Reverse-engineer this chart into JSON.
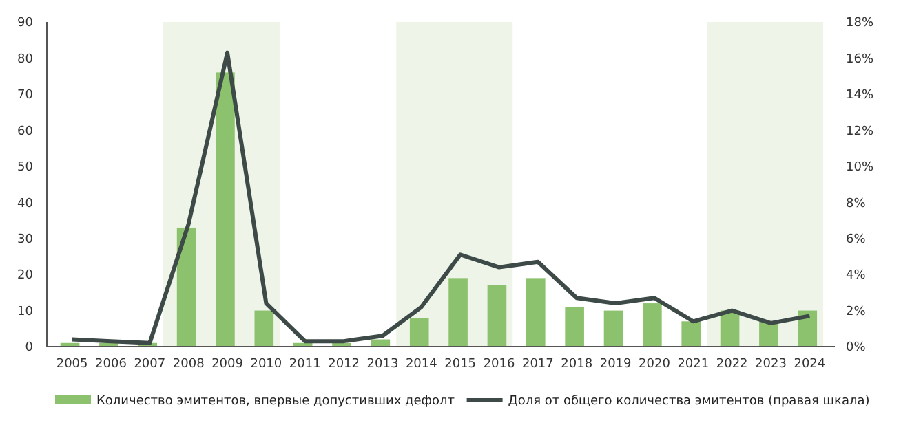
{
  "chart_data": {
    "type": "bar",
    "categories": [
      "2005",
      "2006",
      "2007",
      "2008",
      "2009",
      "2010",
      "2011",
      "2012",
      "2013",
      "2014",
      "2015",
      "2016",
      "2017",
      "2018",
      "2019",
      "2020",
      "2021",
      "2022",
      "2023",
      "2024"
    ],
    "series": [
      {
        "name": "Количество эмитентов, впервые допустивших дефолт",
        "color": "#8cc26e",
        "values": [
          1,
          1,
          1,
          33,
          76,
          10,
          1,
          1,
          2,
          8,
          19,
          17,
          19,
          11,
          10,
          12,
          7,
          10,
          7,
          10
        ]
      },
      {
        "name": "Доля от общего количества эмитентов (правая шкала)",
        "color": "#3d4a48",
        "type": "line",
        "axis": "y2",
        "values": [
          0.4,
          0.3,
          0.2,
          6.8,
          16.3,
          2.4,
          0.3,
          0.3,
          0.6,
          2.2,
          5.1,
          4.4,
          4.7,
          2.7,
          2.4,
          2.7,
          1.4,
          2.0,
          1.3,
          1.7
        ]
      }
    ],
    "ylim": [
      0,
      90
    ],
    "yticks": [
      0,
      10,
      20,
      30,
      40,
      50,
      60,
      70,
      80,
      90
    ],
    "y2lim": [
      0,
      18
    ],
    "y2ticks": [
      {
        "value": 0,
        "label": "0%"
      },
      {
        "value": 2,
        "label": "2%"
      },
      {
        "value": 4,
        "label": "4%"
      },
      {
        "value": 6,
        "label": "6%"
      },
      {
        "value": 8,
        "label": "8%"
      },
      {
        "value": 10,
        "label": "10%"
      },
      {
        "value": 12,
        "label": "12%"
      },
      {
        "value": 14,
        "label": "14%"
      },
      {
        "value": 16,
        "label": "16%"
      },
      {
        "value": 18,
        "label": "18%"
      }
    ],
    "bands": [
      {
        "axis": "x",
        "from": "2008",
        "to": "2010",
        "color": "#eef5e8"
      },
      {
        "axis": "x",
        "from": "2014",
        "to": "2016",
        "color": "#eef5e8"
      },
      {
        "axis": "x",
        "from": "2022",
        "to": "2024",
        "color": "#eef5e8"
      }
    ],
    "legend": "bottom",
    "grid": false,
    "marker": "none",
    "line_style": "solid"
  }
}
